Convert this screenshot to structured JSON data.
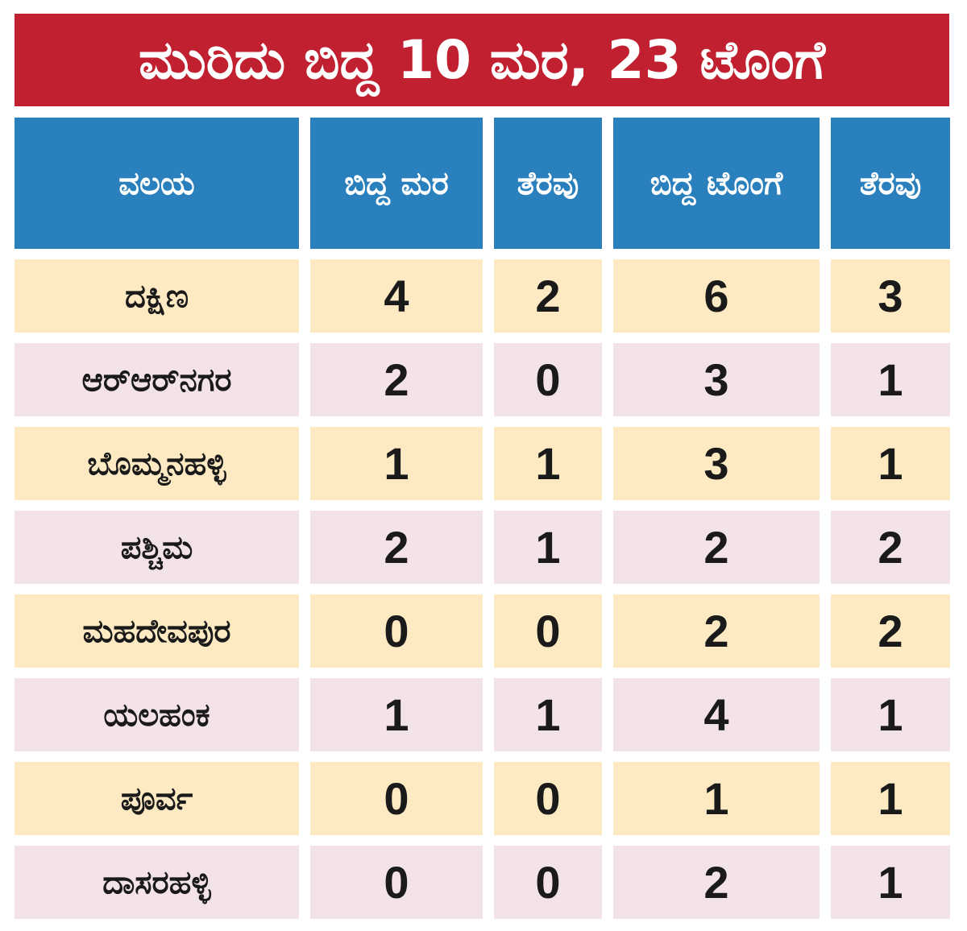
{
  "chart_data": {
    "type": "table",
    "title": "ಮುರಿದು ಬಿದ್ದ 10 ಮರ, 23 ಟೊಂಗೆ",
    "columns": [
      "ವಲಯ",
      "ಬಿದ್ದ ಮರ",
      "ತೆರವು",
      "ಬಿದ್ದ ಟೊಂಗೆ",
      "ತೆರವು"
    ],
    "rows": [
      {
        "zone": "ದಕ್ಷಿಣ",
        "fallen_trees": 4,
        "trees_cleared": 2,
        "fallen_branches": 6,
        "branches_cleared": 3
      },
      {
        "zone": "ಆರ್‌ಆರ್‌ನಗರ",
        "fallen_trees": 2,
        "trees_cleared": 0,
        "fallen_branches": 3,
        "branches_cleared": 1
      },
      {
        "zone": "ಬೊಮ್ಮನಹಳ್ಳಿ",
        "fallen_trees": 1,
        "trees_cleared": 1,
        "fallen_branches": 3,
        "branches_cleared": 1
      },
      {
        "zone": "ಪಶ್ಚಿಮ",
        "fallen_trees": 2,
        "trees_cleared": 1,
        "fallen_branches": 2,
        "branches_cleared": 2
      },
      {
        "zone": "ಮಹದೇವಪುರ",
        "fallen_trees": 0,
        "trees_cleared": 0,
        "fallen_branches": 2,
        "branches_cleared": 2
      },
      {
        "zone": "ಯಲಹಂಕ",
        "fallen_trees": 1,
        "trees_cleared": 1,
        "fallen_branches": 4,
        "branches_cleared": 1
      },
      {
        "zone": "ಪೂರ್ವ",
        "fallen_trees": 0,
        "trees_cleared": 0,
        "fallen_branches": 1,
        "branches_cleared": 1
      },
      {
        "zone": "ದಾಸರಹಳ್ಳಿ",
        "fallen_trees": 0,
        "trees_cleared": 0,
        "fallen_branches": 2,
        "branches_cleared": 1
      }
    ]
  },
  "colors": {
    "title_bg": "#c0202f",
    "header_bg": "#2a7fbd",
    "row_odd_bg": "#fdeac3",
    "row_even_bg": "#f3e2e8",
    "text": "#1a1a1a",
    "header_text": "#ffffff"
  }
}
